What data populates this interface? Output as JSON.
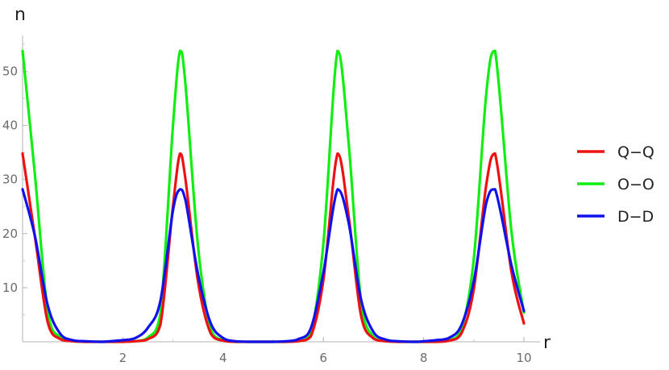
{
  "chart_data": {
    "type": "line",
    "title": "",
    "xlabel": "r",
    "ylabel": "n",
    "xlim": [
      0,
      10
    ],
    "ylim": [
      0,
      55
    ],
    "x_ticks": [
      2,
      4,
      6,
      8,
      10
    ],
    "y_ticks": [
      10,
      20,
      30,
      40,
      50
    ],
    "x_tick_labels": [
      "2",
      "4",
      "6",
      "8",
      "10"
    ],
    "y_tick_labels": [
      "10",
      "20",
      "30",
      "40",
      "50"
    ],
    "grid": false,
    "legend_position": "right",
    "x": [
      0,
      0.25,
      0.5,
      0.75,
      1,
      1.25,
      1.5708,
      1.75,
      2,
      2.25,
      2.5,
      2.75,
      3,
      3.1416,
      3.25,
      3.5,
      3.75,
      4,
      4.25,
      4.5,
      4.7124,
      5,
      5.25,
      5.5,
      5.75,
      6,
      6.2832,
      6.5,
      6.75,
      7,
      7.25,
      7.5,
      7.854,
      8,
      8.25,
      8.5,
      8.75,
      9,
      9.25,
      9.4248,
      9.75,
      10
    ],
    "series": [
      {
        "name": "Q−Q",
        "color": "#ee1111",
        "values": [
          34.8,
          19.2,
          3.7,
          0.5,
          0.1,
          0.0,
          0.0,
          0.0,
          0.0,
          0.1,
          0.5,
          3.2,
          25.1,
          34.8,
          30.0,
          11.1,
          1.6,
          0.2,
          0.0,
          0.0,
          0.0,
          0.0,
          0.0,
          0.1,
          1.0,
          11.4,
          34.8,
          23.5,
          4.9,
          0.6,
          0.1,
          0.0,
          0.0,
          0.0,
          0.0,
          0.2,
          1.5,
          9.7,
          29.1,
          34.8,
          13.0,
          3.4
        ]
      },
      {
        "name": "O−O",
        "color": "#11ee11",
        "values": [
          53.8,
          30.5,
          5.8,
          0.8,
          0.1,
          0.0,
          0.0,
          0.0,
          0.0,
          0.1,
          0.8,
          5.3,
          40.0,
          53.8,
          47.5,
          17.6,
          2.4,
          0.3,
          0.0,
          0.0,
          0.0,
          0.0,
          0.0,
          0.1,
          1.5,
          18.1,
          53.8,
          37.2,
          7.7,
          0.9,
          0.1,
          0.0,
          0.0,
          0.0,
          0.0,
          0.3,
          2.3,
          15.3,
          46.0,
          53.8,
          20.5,
          5.4
        ]
      },
      {
        "name": "D−D",
        "color": "#1111ee",
        "values": [
          28.2,
          19.4,
          6.8,
          1.5,
          0.3,
          0.1,
          0.0,
          0.1,
          0.3,
          0.7,
          2.6,
          7.6,
          24.3,
          28.2,
          26.2,
          12.5,
          3.5,
          0.7,
          0.1,
          0.0,
          0.0,
          0.0,
          0.1,
          0.5,
          2.5,
          12.8,
          28.2,
          22.2,
          7.9,
          1.8,
          0.4,
          0.1,
          0.0,
          0.1,
          0.3,
          0.7,
          3.0,
          11.2,
          25.7,
          28.2,
          14.2,
          5.7
        ]
      }
    ]
  }
}
